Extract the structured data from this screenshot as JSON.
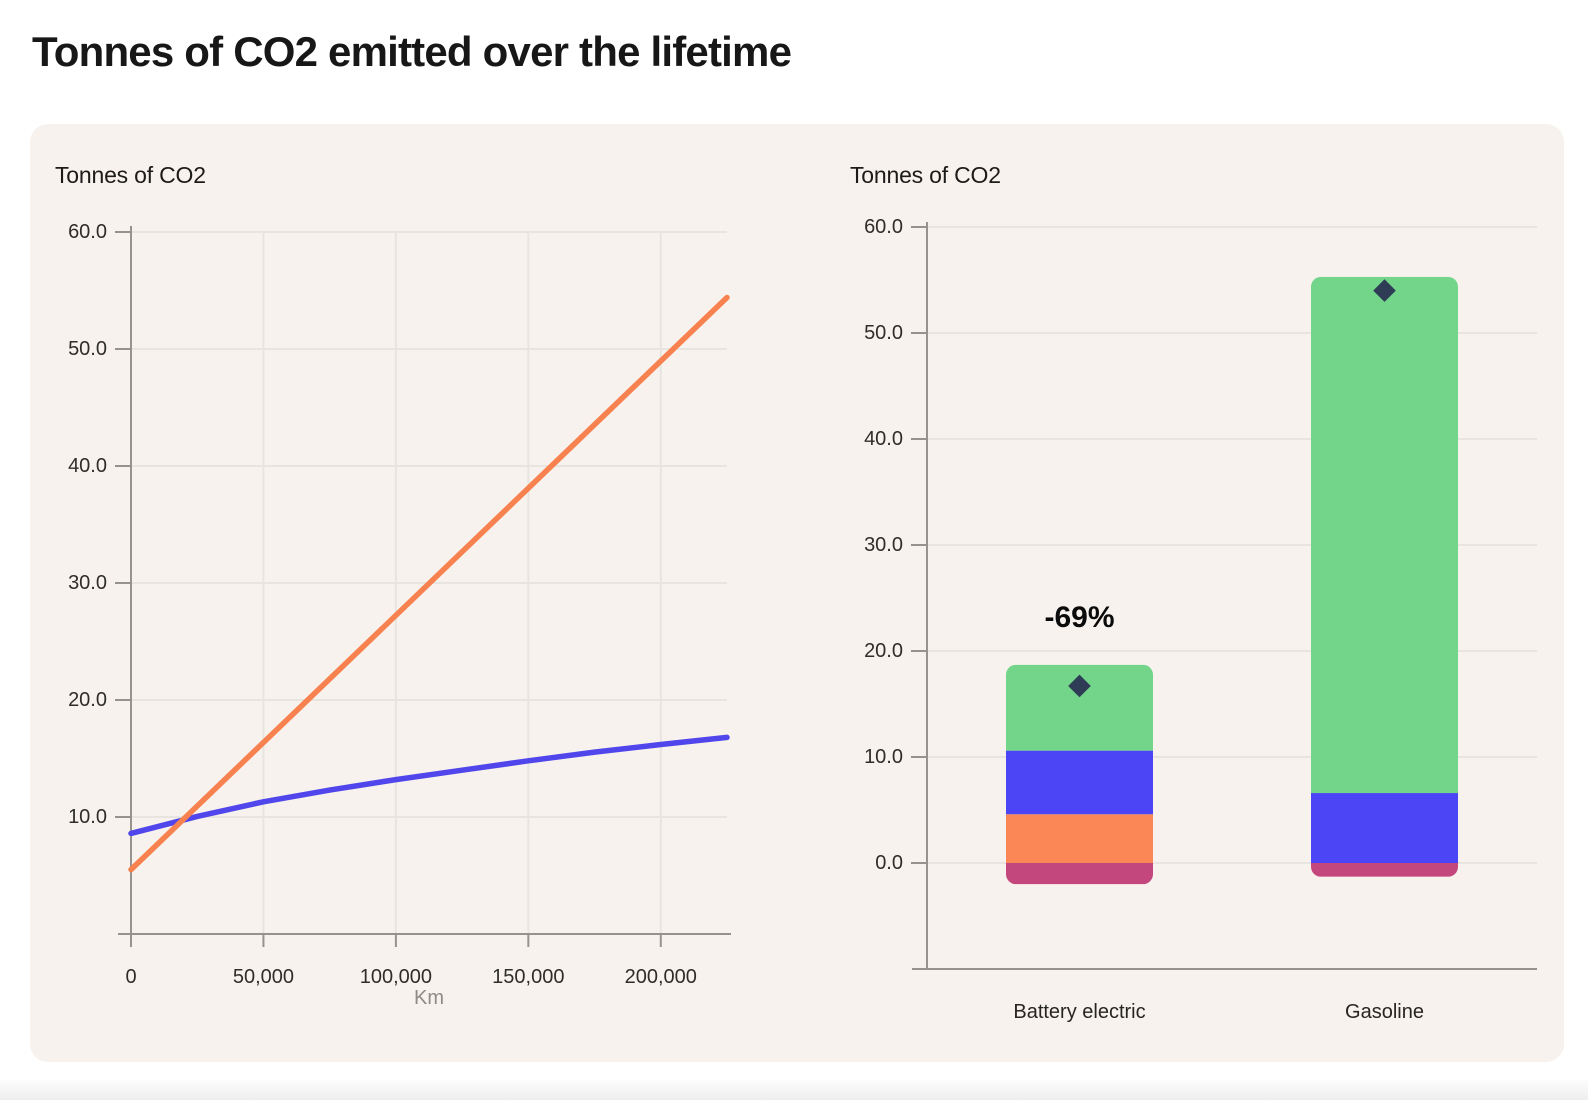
{
  "page": {
    "title": "Tonnes of CO2 emitted over the lifetime"
  },
  "colors": {
    "panel_background": "#F7F2ED",
    "gridline": "#E8E5E1",
    "axis": "#96938F",
    "gasoline_line": "#F7824F",
    "battery_line": "#5046EC",
    "bar_green": "#72D589",
    "bar_indigo": "#4B45F6",
    "bar_orange": "#FB8756",
    "bar_crimson": "#C3477D",
    "diamond_marker": "#2E3C56"
  },
  "chart_data": [
    {
      "id": "lifetime-line",
      "type": "line",
      "title": "Tonnes of CO2",
      "xlabel": "Km",
      "ylabel": "",
      "xlim": [
        0,
        225000
      ],
      "ylim": [
        0,
        60
      ],
      "grid": true,
      "legend": "none",
      "x_ticks": [
        {
          "value": 0,
          "label": "0"
        },
        {
          "value": 50000,
          "label": "50,000"
        },
        {
          "value": 100000,
          "label": "100,000"
        },
        {
          "value": 150000,
          "label": "150,000"
        },
        {
          "value": 200000,
          "label": "200,000"
        }
      ],
      "y_ticks": [
        {
          "value": 10,
          "label": "10.0"
        },
        {
          "value": 20,
          "label": "20.0"
        },
        {
          "value": 30,
          "label": "30.0"
        },
        {
          "value": 40,
          "label": "40.0"
        },
        {
          "value": 50,
          "label": "50.0"
        },
        {
          "value": 60,
          "label": "60.0"
        }
      ],
      "series": [
        {
          "name": "battery-electric",
          "color": "#5046EC",
          "points": [
            [
              0,
              8.6
            ],
            [
              25000,
              10.05
            ],
            [
              50000,
              11.3
            ],
            [
              75000,
              12.3
            ],
            [
              100000,
              13.2
            ],
            [
              125000,
              14.0
            ],
            [
              150000,
              14.8
            ],
            [
              175000,
              15.55
            ],
            [
              200000,
              16.2
            ],
            [
              225000,
              16.8
            ]
          ]
        },
        {
          "name": "gasoline",
          "color": "#F7824F",
          "points": [
            [
              0,
              5.5
            ],
            [
              225000,
              54.4
            ]
          ]
        }
      ]
    },
    {
      "id": "lifetime-bars",
      "type": "bar",
      "title": "Tonnes of CO2",
      "categories": [
        "Battery electric",
        "Gasoline"
      ],
      "xlabel": "",
      "ylabel": "",
      "ylim": [
        -10,
        60
      ],
      "grid": true,
      "legend": "none",
      "y_ticks": [
        {
          "value": 0,
          "label": "0.0"
        },
        {
          "value": 10,
          "label": "10.0"
        },
        {
          "value": 20,
          "label": "20.0"
        },
        {
          "value": 30,
          "label": "30.0"
        },
        {
          "value": 40,
          "label": "40.0"
        },
        {
          "value": 50,
          "label": "50.0"
        },
        {
          "value": 60,
          "label": "60.0"
        }
      ],
      "series": [
        {
          "name": "crimson-segment",
          "color": "#C3477D",
          "values": [
            -2.0,
            -1.3
          ]
        },
        {
          "name": "orange-segment",
          "color": "#FB8756",
          "values": [
            4.6,
            0
          ]
        },
        {
          "name": "indigo-segment",
          "color": "#4B45F6",
          "values": [
            6.0,
            6.6
          ]
        },
        {
          "name": "green-segment",
          "color": "#72D589",
          "values": [
            8.1,
            48.7
          ]
        }
      ],
      "stacked_totals": [
        18.7,
        55.3
      ],
      "total_markers": {
        "shape": "diamond",
        "color": "#2E3C56",
        "values": [
          16.7,
          54.0
        ]
      },
      "annotations": [
        {
          "text": "-69%",
          "category_index": 0
        }
      ]
    }
  ]
}
